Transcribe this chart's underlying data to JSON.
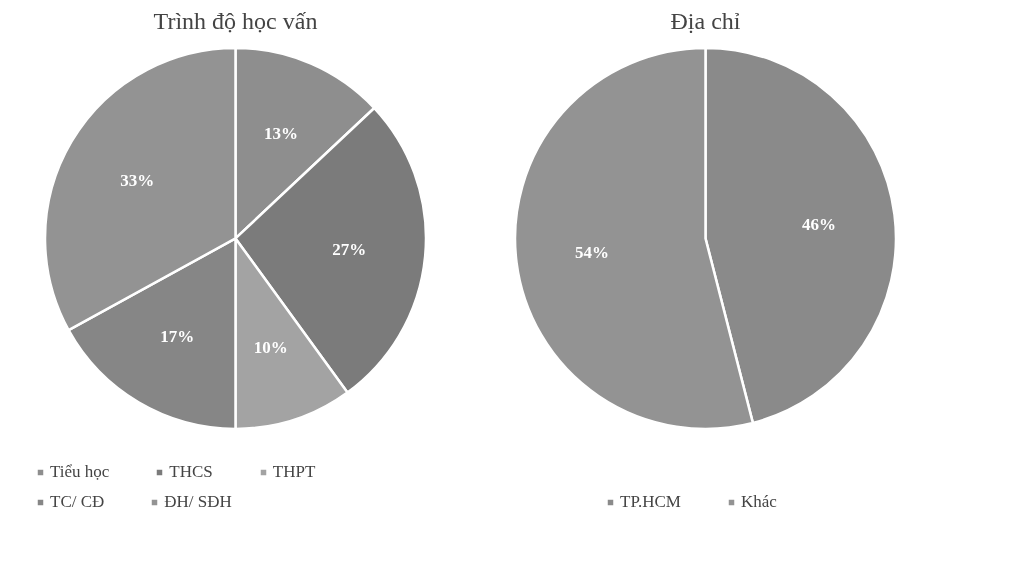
{
  "chart_data": [
    {
      "type": "pie",
      "title": "Trình độ học vấn",
      "categories": [
        "Tiểu học",
        "THCS",
        "THPT",
        "TC/ CĐ",
        "ĐH/ SĐH"
      ],
      "values": [
        13,
        27,
        10,
        17,
        33
      ],
      "value_labels": [
        "13%",
        "27%",
        "10%",
        "17%",
        "33%"
      ],
      "colors": [
        "#8e8e8e",
        "#7b7b7b",
        "#a3a3a3",
        "#868686",
        "#939393"
      ],
      "legend": "bottom"
    },
    {
      "type": "pie",
      "title": "Địa chỉ",
      "categories": [
        "TP.HCM",
        "Khác"
      ],
      "values": [
        46,
        54
      ],
      "value_labels": [
        "46%",
        "54%"
      ],
      "colors": [
        "#8a8a8a",
        "#939393"
      ],
      "legend": "bottom"
    }
  ]
}
